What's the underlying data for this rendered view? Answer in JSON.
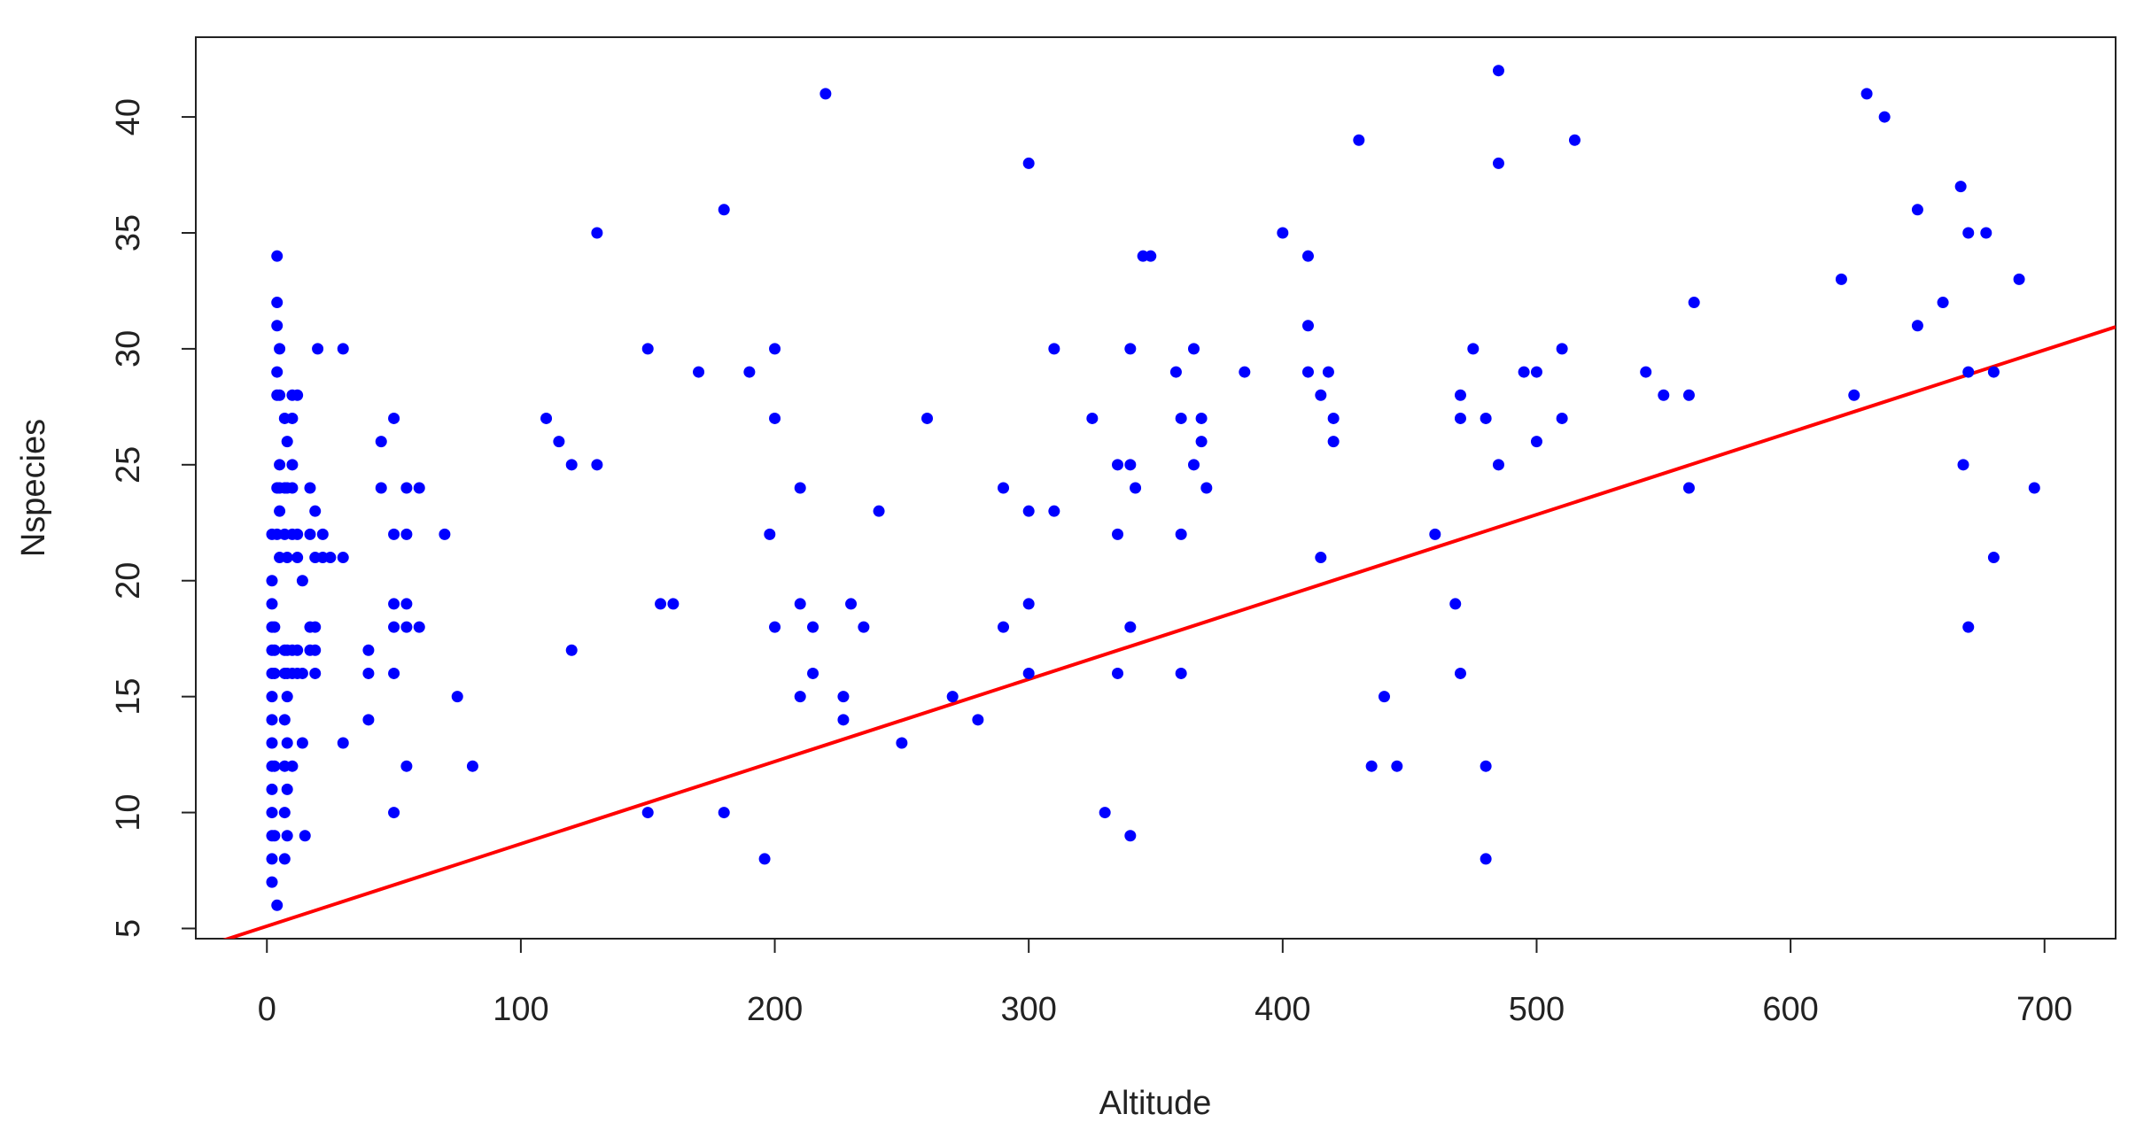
{
  "chart_data": {
    "type": "scatter",
    "x_label": "Altitude",
    "y_label": "Nspecies",
    "xlim": [
      -28,
      728
    ],
    "ylim": [
      4.56,
      43.44
    ],
    "xticks": [
      0,
      100,
      200,
      300,
      400,
      500,
      600,
      700
    ],
    "yticks": [
      5,
      10,
      15,
      20,
      25,
      30,
      35,
      40
    ],
    "color": "#0000ff",
    "x": [
      2,
      2,
      2,
      2,
      2,
      2,
      2,
      2,
      2,
      2,
      2,
      2,
      2,
      2,
      2,
      3,
      3,
      3,
      3,
      3,
      4,
      4,
      4,
      4,
      4,
      4,
      4,
      4,
      5,
      5,
      5,
      5,
      5,
      5,
      7,
      7,
      7,
      7,
      7,
      7,
      7,
      7,
      7,
      8,
      8,
      8,
      8,
      8,
      8,
      8,
      8,
      8,
      10,
      10,
      10,
      10,
      10,
      10,
      10,
      10,
      12,
      12,
      12,
      12,
      12,
      14,
      14,
      14,
      15,
      17,
      17,
      17,
      17,
      19,
      19,
      19,
      19,
      19,
      20,
      22,
      22,
      25,
      30,
      30,
      30,
      40,
      40,
      40,
      45,
      45,
      50,
      50,
      50,
      50,
      50,
      50,
      55,
      55,
      55,
      55,
      55,
      60,
      60,
      70,
      75,
      81,
      110,
      115,
      120,
      120,
      130,
      130,
      150,
      150,
      155,
      160,
      170,
      180,
      180,
      190,
      196,
      198,
      200,
      200,
      200,
      210,
      210,
      210,
      215,
      215,
      220,
      227,
      227,
      230,
      235,
      241,
      250,
      260,
      270,
      280,
      290,
      290,
      300,
      300,
      300,
      300,
      310,
      310,
      325,
      330,
      335,
      335,
      335,
      340,
      340,
      340,
      340,
      342,
      345,
      348,
      358,
      360,
      360,
      360,
      365,
      365,
      368,
      368,
      370,
      385,
      400,
      410,
      410,
      410,
      415,
      415,
      418,
      420,
      420,
      430,
      435,
      440,
      445,
      460,
      468,
      470,
      470,
      470,
      475,
      480,
      480,
      480,
      485,
      485,
      485,
      495,
      500,
      500,
      510,
      510,
      515,
      543,
      550,
      560,
      560,
      562,
      620,
      625,
      630,
      637,
      650,
      650,
      660,
      667,
      668,
      670,
      670,
      670,
      677,
      680,
      680,
      690,
      696
    ],
    "values": [
      7,
      8,
      9,
      10,
      11,
      12,
      13,
      14,
      15,
      16,
      17,
      18,
      19,
      20,
      22,
      18,
      17,
      16,
      12,
      9,
      6,
      22,
      24,
      28,
      29,
      31,
      32,
      34,
      30,
      28,
      25,
      24,
      23,
      21,
      27,
      24,
      22,
      17,
      16,
      14,
      12,
      10,
      8,
      26,
      24,
      21,
      17,
      16,
      15,
      13,
      11,
      9,
      28,
      27,
      25,
      24,
      22,
      17,
      16,
      12,
      28,
      22,
      21,
      17,
      16,
      20,
      16,
      13,
      9,
      24,
      22,
      18,
      17,
      23,
      21,
      18,
      17,
      16,
      30,
      22,
      21,
      21,
      30,
      21,
      13,
      17,
      16,
      14,
      26,
      24,
      27,
      22,
      19,
      18,
      16,
      10,
      24,
      22,
      19,
      18,
      12,
      24,
      18,
      22,
      15,
      12,
      27,
      26,
      25,
      17,
      35,
      25,
      30,
      10,
      19,
      19,
      29,
      36,
      10,
      29,
      8,
      22,
      30,
      27,
      18,
      24,
      19,
      15,
      16,
      18,
      41,
      15,
      14,
      19,
      18,
      23,
      13,
      27,
      15,
      14,
      24,
      18,
      38,
      23,
      19,
      16,
      30,
      23,
      27,
      10,
      25,
      22,
      16,
      30,
      25,
      18,
      9,
      24,
      34,
      34,
      29,
      27,
      22,
      16,
      30,
      25,
      27,
      26,
      24,
      29,
      35,
      34,
      31,
      29,
      28,
      21,
      29,
      27,
      26,
      39,
      12,
      15,
      12,
      22,
      19,
      28,
      27,
      16,
      30,
      27,
      12,
      8,
      42,
      38,
      25,
      29,
      29,
      26,
      30,
      27,
      39,
      29,
      28,
      28,
      24,
      32,
      33,
      28,
      41,
      40,
      36,
      31,
      32,
      37,
      25,
      35,
      29,
      18,
      35,
      29,
      21,
      33,
      24
    ],
    "fit": {
      "intercept": 5.1,
      "slope": 0.0355,
      "color": "#ff0000"
    }
  }
}
